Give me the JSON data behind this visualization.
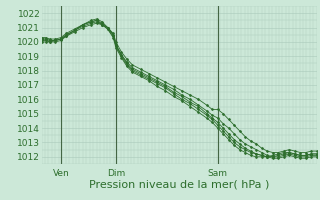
{
  "bg_color": "#cce8d8",
  "grid_color": "#aacabb",
  "line_color": "#2d6e2d",
  "marker_color": "#2d6e2d",
  "xlabel": "Pression niveau de la mer( hPa )",
  "xlabel_fontsize": 8,
  "ylabel_ticks": [
    1012,
    1013,
    1014,
    1015,
    1016,
    1017,
    1018,
    1019,
    1020,
    1021,
    1022
  ],
  "ylim": [
    1011.5,
    1022.5
  ],
  "tick_label_fontsize": 6.5,
  "tick_color": "#2d6e2d",
  "xtick_labels": [
    "Ven",
    "Dim",
    "Sam"
  ],
  "xtick_positions": [
    0.07,
    0.27,
    0.64
  ],
  "vline_positions": [
    0.07,
    0.27,
    0.64
  ],
  "series": [
    {
      "x": [
        0.0,
        0.015,
        0.03,
        0.05,
        0.07,
        0.09,
        0.12,
        0.15,
        0.18,
        0.2,
        0.22,
        0.24,
        0.26,
        0.27,
        0.29,
        0.31,
        0.33,
        0.36,
        0.39,
        0.42,
        0.45,
        0.48,
        0.51,
        0.54,
        0.57,
        0.6,
        0.62,
        0.64,
        0.66,
        0.68,
        0.7,
        0.72,
        0.74,
        0.76,
        0.78,
        0.8,
        0.82,
        0.84,
        0.86,
        0.88,
        0.9,
        0.92,
        0.94,
        0.96,
        0.98,
        1.0
      ],
      "y": [
        1020.1,
        1020.1,
        1020.0,
        1020.1,
        1020.2,
        1020.4,
        1020.7,
        1021.0,
        1021.2,
        1021.3,
        1021.2,
        1021.0,
        1020.6,
        1020.0,
        1019.3,
        1018.8,
        1018.4,
        1018.1,
        1017.8,
        1017.5,
        1017.2,
        1016.9,
        1016.6,
        1016.3,
        1016.0,
        1015.6,
        1015.3,
        1015.3,
        1015.0,
        1014.6,
        1014.2,
        1013.8,
        1013.4,
        1013.1,
        1012.9,
        1012.6,
        1012.4,
        1012.3,
        1012.3,
        1012.4,
        1012.5,
        1012.4,
        1012.3,
        1012.3,
        1012.4,
        1012.4
      ]
    },
    {
      "x": [
        0.0,
        0.015,
        0.03,
        0.05,
        0.07,
        0.09,
        0.12,
        0.15,
        0.18,
        0.2,
        0.22,
        0.24,
        0.26,
        0.27,
        0.29,
        0.31,
        0.33,
        0.36,
        0.39,
        0.42,
        0.45,
        0.48,
        0.51,
        0.54,
        0.57,
        0.6,
        0.62,
        0.64,
        0.66,
        0.68,
        0.7,
        0.72,
        0.74,
        0.76,
        0.78,
        0.8,
        0.82,
        0.84,
        0.86,
        0.88,
        0.9,
        0.92,
        0.94,
        0.96,
        0.98,
        1.0
      ],
      "y": [
        1020.2,
        1020.2,
        1020.1,
        1020.1,
        1020.2,
        1020.5,
        1020.8,
        1021.1,
        1021.3,
        1021.4,
        1021.2,
        1020.9,
        1020.4,
        1019.8,
        1019.1,
        1018.6,
        1018.2,
        1017.9,
        1017.6,
        1017.3,
        1017.0,
        1016.7,
        1016.3,
        1016.0,
        1015.6,
        1015.2,
        1014.9,
        1014.7,
        1014.3,
        1014.0,
        1013.6,
        1013.2,
        1012.9,
        1012.7,
        1012.5,
        1012.3,
        1012.1,
        1012.0,
        1012.0,
        1012.1,
        1012.2,
        1012.1,
        1012.0,
        1012.0,
        1012.1,
        1012.1
      ]
    },
    {
      "x": [
        0.0,
        0.015,
        0.03,
        0.05,
        0.07,
        0.09,
        0.12,
        0.15,
        0.18,
        0.2,
        0.22,
        0.24,
        0.26,
        0.27,
        0.29,
        0.31,
        0.33,
        0.36,
        0.39,
        0.42,
        0.45,
        0.48,
        0.51,
        0.54,
        0.57,
        0.6,
        0.62,
        0.64,
        0.66,
        0.68,
        0.7,
        0.72,
        0.74,
        0.76,
        0.78,
        0.8,
        0.82,
        0.84,
        0.86,
        0.88,
        0.9,
        0.92,
        0.94,
        0.96,
        0.98,
        1.0
      ],
      "y": [
        1020.0,
        1020.0,
        1020.0,
        1020.0,
        1020.1,
        1020.4,
        1020.8,
        1021.2,
        1021.4,
        1021.5,
        1021.3,
        1021.0,
        1020.5,
        1019.8,
        1019.1,
        1018.5,
        1018.1,
        1017.8,
        1017.5,
        1017.2,
        1016.9,
        1016.5,
        1016.2,
        1015.8,
        1015.5,
        1015.0,
        1014.7,
        1014.4,
        1014.0,
        1013.6,
        1013.2,
        1012.9,
        1012.6,
        1012.4,
        1012.2,
        1012.1,
        1012.0,
        1011.9,
        1011.9,
        1012.0,
        1012.1,
        1012.0,
        1011.9,
        1011.9,
        1012.0,
        1012.0
      ]
    },
    {
      "x": [
        0.0,
        0.015,
        0.03,
        0.05,
        0.07,
        0.09,
        0.12,
        0.15,
        0.18,
        0.2,
        0.22,
        0.24,
        0.26,
        0.27,
        0.29,
        0.31,
        0.33,
        0.36,
        0.39,
        0.42,
        0.45,
        0.48,
        0.51,
        0.54,
        0.57,
        0.6,
        0.62,
        0.64,
        0.66,
        0.68,
        0.7,
        0.72,
        0.74,
        0.76,
        0.78,
        0.8,
        0.82,
        0.84,
        0.86,
        0.88,
        0.9,
        0.92,
        0.94,
        0.96,
        0.98,
        1.0
      ],
      "y": [
        1020.3,
        1020.3,
        1020.2,
        1020.2,
        1020.3,
        1020.6,
        1020.9,
        1021.2,
        1021.5,
        1021.6,
        1021.4,
        1021.0,
        1020.5,
        1019.7,
        1019.0,
        1018.4,
        1018.0,
        1017.7,
        1017.4,
        1017.1,
        1016.8,
        1016.4,
        1016.0,
        1015.7,
        1015.3,
        1014.9,
        1014.6,
        1014.2,
        1013.8,
        1013.4,
        1013.0,
        1012.7,
        1012.5,
        1012.3,
        1012.2,
        1012.1,
        1012.0,
        1012.0,
        1012.1,
        1012.2,
        1012.3,
        1012.2,
        1012.1,
        1012.1,
        1012.2,
        1012.2
      ]
    },
    {
      "x": [
        0.0,
        0.015,
        0.03,
        0.05,
        0.07,
        0.09,
        0.12,
        0.15,
        0.18,
        0.2,
        0.22,
        0.24,
        0.26,
        0.27,
        0.29,
        0.31,
        0.33,
        0.36,
        0.39,
        0.42,
        0.45,
        0.48,
        0.51,
        0.54,
        0.57,
        0.6,
        0.62,
        0.64,
        0.66,
        0.68,
        0.7,
        0.72,
        0.74,
        0.76,
        0.78,
        0.8,
        0.82,
        0.84,
        0.86,
        0.88,
        0.9,
        0.92,
        0.94,
        0.96,
        0.98,
        1.0
      ],
      "y": [
        1020.2,
        1020.2,
        1020.1,
        1020.1,
        1020.2,
        1020.5,
        1020.8,
        1021.2,
        1021.4,
        1021.5,
        1021.2,
        1020.9,
        1020.3,
        1019.6,
        1018.9,
        1018.3,
        1017.9,
        1017.6,
        1017.3,
        1016.9,
        1016.6,
        1016.2,
        1015.9,
        1015.5,
        1015.1,
        1014.7,
        1014.4,
        1014.0,
        1013.6,
        1013.2,
        1012.8,
        1012.5,
        1012.3,
        1012.1,
        1012.0,
        1012.0,
        1012.0,
        1012.1,
        1012.2,
        1012.3,
        1012.3,
        1012.2,
        1012.1,
        1012.1,
        1012.2,
        1012.2
      ]
    }
  ]
}
